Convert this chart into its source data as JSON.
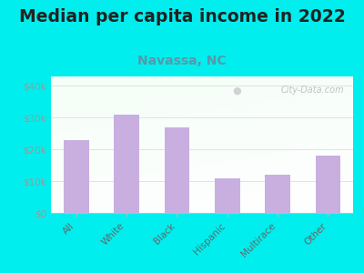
{
  "title": "Median per capita income in 2022",
  "subtitle": "Navassa, NC",
  "categories": [
    "All",
    "White",
    "Black",
    "Hispanic",
    "Multirace",
    "Other"
  ],
  "values": [
    23000,
    31000,
    27000,
    11000,
    12000,
    18000
  ],
  "bar_color": "#c9aee0",
  "background_outer": "#00EEEE",
  "title_fontsize": 13.5,
  "subtitle_fontsize": 10,
  "subtitle_color": "#5599aa",
  "title_color": "#222222",
  "yticks": [
    0,
    10000,
    20000,
    30000,
    40000
  ],
  "ytick_labels": [
    "$0",
    "$10k",
    "$20k",
    "$30k",
    "$40k"
  ],
  "ylim": [
    0,
    43000
  ],
  "watermark": "City-Data.com",
  "tick_color": "#999999",
  "grid_color": "#dddddd",
  "axis_label_color": "#666666",
  "spine_color": "#bbbbbb"
}
